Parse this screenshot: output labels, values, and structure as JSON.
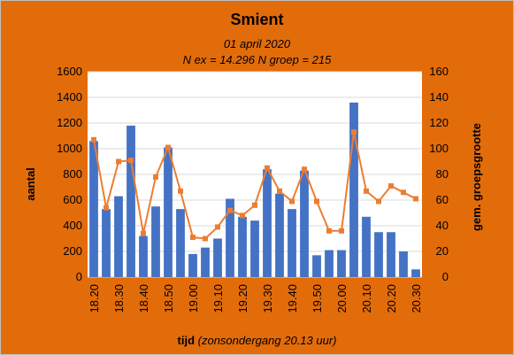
{
  "chart_data": {
    "type": "bar",
    "title": "Smient",
    "subtitle_line1": "01 april 2020",
    "subtitle_line2": "N ex = 14.296  N groep = 215",
    "xlabel_bold": "tijd",
    "xlabel_italic": "(zonsondergang 20.13 uur)",
    "ylabel": "aantal",
    "y2label": "gem. groepsgrootte",
    "ylim": [
      0,
      1600
    ],
    "y2lim": [
      0,
      160
    ],
    "yticks": [
      "0",
      "200",
      "400",
      "600",
      "800",
      "1000",
      "1200",
      "1400",
      "1600"
    ],
    "y2ticks": [
      "0",
      "20",
      "40",
      "60",
      "80",
      "100",
      "120",
      "140",
      "160"
    ],
    "categories": [
      "18.20",
      "18.25",
      "18.30",
      "18.35",
      "18.40",
      "18.45",
      "18.50",
      "18.55",
      "19.00",
      "19.05",
      "19.10",
      "19.15",
      "19.20",
      "19.25",
      "19.30",
      "19.35",
      "19.40",
      "19.45",
      "19.50",
      "19.55",
      "20.00",
      "20.05",
      "20.10",
      "20.15",
      "20.20",
      "20.25",
      "20.30"
    ],
    "tick_labels": [
      "18.20",
      "18.30",
      "18.40",
      "18.50",
      "19.00",
      "19.10",
      "19.20",
      "19.30",
      "19.40",
      "19.50",
      "20.00",
      "20.10",
      "20.20",
      "20.30"
    ],
    "series": [
      {
        "kind": "bar",
        "axis": "left",
        "color": "#4472c4",
        "values": [
          1060,
          530,
          630,
          1180,
          320,
          550,
          1010,
          530,
          180,
          230,
          300,
          610,
          470,
          440,
          840,
          650,
          530,
          830,
          170,
          210,
          210,
          1360,
          470,
          350,
          350,
          200,
          60
        ]
      },
      {
        "kind": "line",
        "axis": "right",
        "color": "#ed7d31",
        "values": [
          107,
          54,
          90,
          91,
          34,
          78,
          101,
          67,
          31,
          30,
          39,
          52,
          48,
          56,
          85,
          67,
          59,
          84,
          59,
          36,
          36,
          113,
          67,
          59,
          71,
          66,
          61
        ]
      }
    ]
  }
}
